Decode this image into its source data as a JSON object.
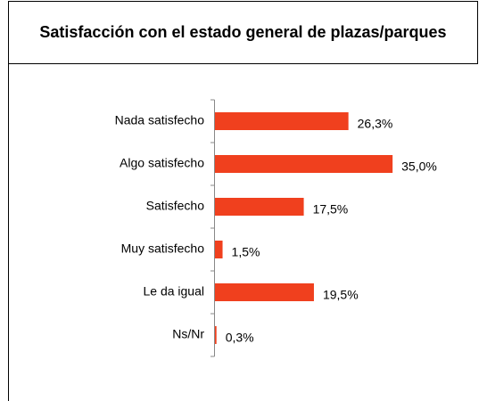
{
  "chart_data": {
    "type": "barh",
    "title": "Satisfacción con el estado general de plazas/parques",
    "categories": [
      "Nada satisfecho",
      "Algo satisfecho",
      "Satisfecho",
      "Muy satisfecho",
      "Le da igual",
      "Ns/Nr"
    ],
    "values": [
      26.3,
      35.0,
      17.5,
      1.5,
      19.5,
      0.3
    ],
    "value_labels": [
      "26,3%",
      "35,0%",
      "17,5%",
      "1,5%",
      "19,5%",
      "0,3%"
    ],
    "color": "#f0401e"
  }
}
